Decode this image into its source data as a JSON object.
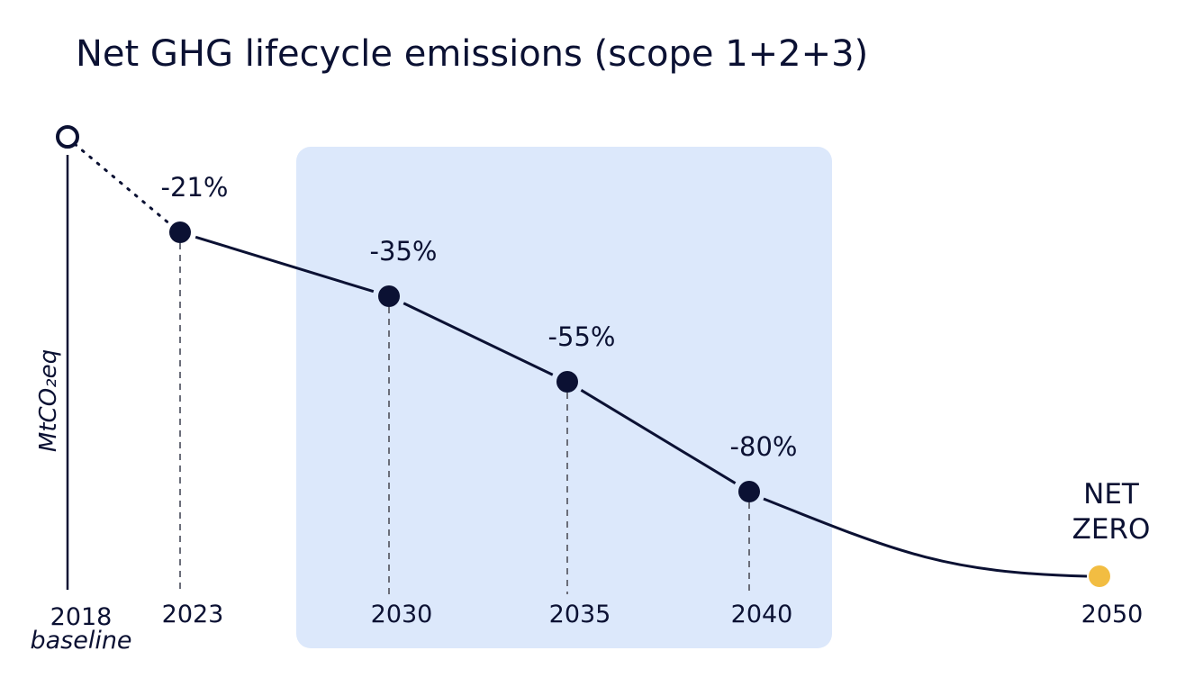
{
  "chart_data": {
    "type": "line",
    "title": "Net GHG lifecycle emissions (scope 1+2+3)",
    "ylabel": "MtCO₂eq",
    "baseline_label": "baseline",
    "x": [
      2018,
      2023,
      2030,
      2035,
      2040,
      2050
    ],
    "tick_labels": [
      "2018",
      "2023",
      "2030",
      "2035",
      "2040",
      "2050"
    ],
    "series": [
      {
        "values": [
          0,
          -21,
          -35,
          -55,
          -80,
          -100
        ],
        "point_labels": [
          "",
          "-21%",
          "-35%",
          "-55%",
          "-80%",
          ""
        ]
      }
    ],
    "end_label_lines": [
      "NET",
      "ZERO"
    ],
    "highlight_range": [
      2027,
      2041
    ],
    "colors": {
      "line": "#0b1133",
      "highlight": "#dce8fb",
      "netzero": "#f2bd42",
      "dashed": "#6b6e7a"
    }
  }
}
